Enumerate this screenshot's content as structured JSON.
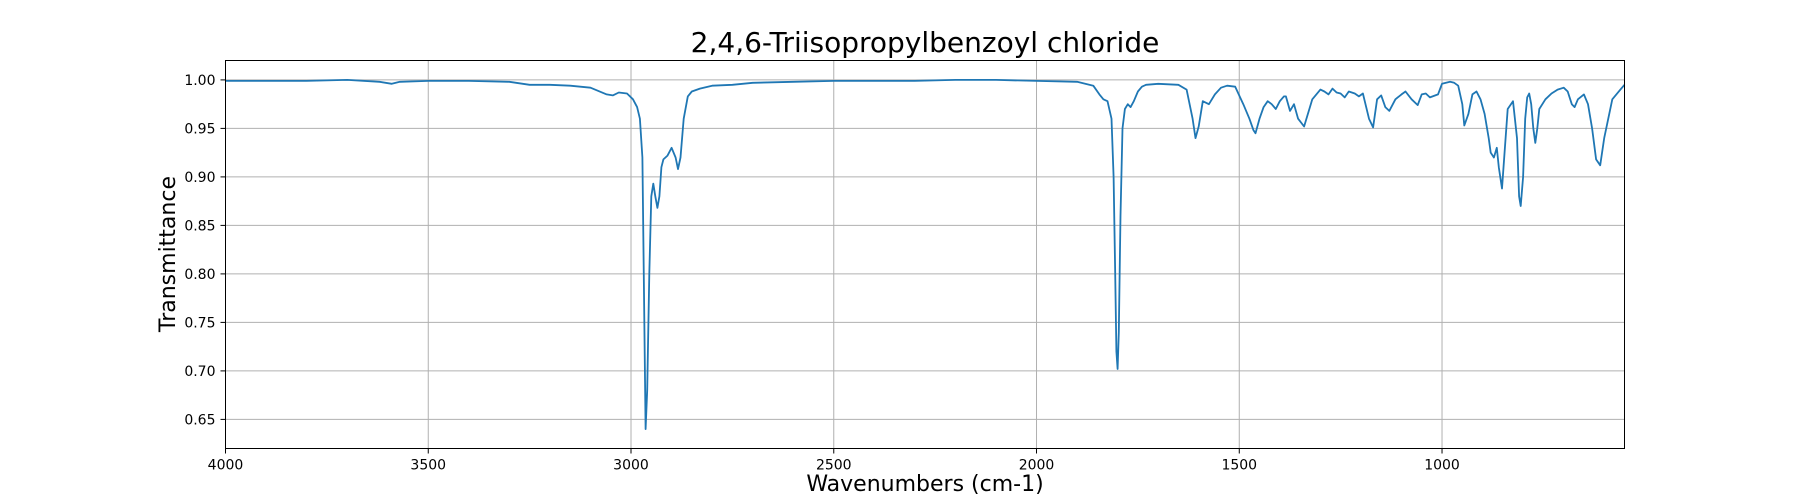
{
  "chart_data": {
    "type": "line",
    "title": "2,4,6-Triisopropylbenzoyl chloride",
    "xlabel": "Wavenumbers (cm-1)",
    "ylabel": "Transmittance",
    "xlim": [
      4000,
      550
    ],
    "ylim": [
      0.62,
      1.02
    ],
    "x_ticks": [
      4000,
      3500,
      3000,
      2500,
      2000,
      1500,
      1000
    ],
    "x_tick_labels": [
      "4000",
      "3500",
      "3000",
      "2500",
      "2000",
      "1500",
      "1000"
    ],
    "y_ticks": [
      0.65,
      0.7,
      0.75,
      0.8,
      0.85,
      0.9,
      0.95,
      1.0
    ],
    "y_tick_labels": [
      "0.65",
      "0.70",
      "0.75",
      "0.80",
      "0.85",
      "0.90",
      "0.95",
      "1.00"
    ],
    "grid": true,
    "color": "#1f77b4",
    "series": [
      {
        "x": [
          4000,
          3900,
          3800,
          3700,
          3620,
          3590,
          3570,
          3500,
          3400,
          3300,
          3250,
          3200,
          3150,
          3100,
          3060,
          3045,
          3030,
          3010,
          2995,
          2985,
          2978,
          2972,
          2968,
          2964,
          2960,
          2955,
          2950,
          2945,
          2940,
          2935,
          2930,
          2925,
          2920,
          2910,
          2900,
          2890,
          2884,
          2878,
          2870,
          2860,
          2850,
          2830,
          2800,
          2750,
          2700,
          2600,
          2500,
          2400,
          2300,
          2200,
          2100,
          2000,
          1900,
          1860,
          1845,
          1835,
          1825,
          1815,
          1810,
          1806,
          1803,
          1800,
          1797,
          1793,
          1788,
          1782,
          1775,
          1768,
          1760,
          1750,
          1740,
          1730,
          1700,
          1650,
          1630,
          1615,
          1608,
          1600,
          1590,
          1575,
          1560,
          1545,
          1530,
          1510,
          1490,
          1475,
          1465,
          1460,
          1450,
          1440,
          1430,
          1420,
          1410,
          1400,
          1390,
          1385,
          1375,
          1365,
          1355,
          1340,
          1320,
          1300,
          1290,
          1280,
          1270,
          1260,
          1250,
          1240,
          1230,
          1215,
          1205,
          1195,
          1180,
          1170,
          1160,
          1150,
          1140,
          1130,
          1115,
          1100,
          1090,
          1075,
          1060,
          1050,
          1040,
          1030,
          1010,
          1000,
          980,
          970,
          960,
          950,
          945,
          935,
          925,
          915,
          905,
          895,
          885,
          880,
          872,
          865,
          860,
          852,
          845,
          838,
          825,
          815,
          810,
          806,
          800,
          795,
          790,
          785,
          780,
          775,
          770,
          765,
          760,
          745,
          730,
          715,
          700,
          690,
          680,
          673,
          665,
          650,
          640,
          630,
          620,
          610,
          600,
          580,
          560,
          550
        ],
        "y": [
          0.999,
          0.999,
          0.999,
          1.0,
          0.998,
          0.996,
          0.998,
          0.999,
          0.999,
          0.998,
          0.995,
          0.995,
          0.994,
          0.992,
          0.985,
          0.984,
          0.987,
          0.986,
          0.98,
          0.972,
          0.96,
          0.92,
          0.78,
          0.64,
          0.68,
          0.8,
          0.88,
          0.893,
          0.88,
          0.868,
          0.88,
          0.91,
          0.918,
          0.922,
          0.93,
          0.92,
          0.908,
          0.92,
          0.96,
          0.983,
          0.988,
          0.991,
          0.994,
          0.995,
          0.997,
          0.998,
          0.999,
          0.999,
          0.999,
          1.0,
          1.0,
          0.999,
          0.998,
          0.994,
          0.985,
          0.98,
          0.978,
          0.96,
          0.9,
          0.8,
          0.72,
          0.702,
          0.74,
          0.86,
          0.95,
          0.97,
          0.975,
          0.972,
          0.978,
          0.988,
          0.993,
          0.995,
          0.996,
          0.995,
          0.99,
          0.96,
          0.94,
          0.952,
          0.978,
          0.975,
          0.985,
          0.992,
          0.994,
          0.993,
          0.975,
          0.96,
          0.948,
          0.945,
          0.96,
          0.972,
          0.978,
          0.975,
          0.97,
          0.978,
          0.983,
          0.983,
          0.968,
          0.975,
          0.96,
          0.952,
          0.98,
          0.99,
          0.988,
          0.985,
          0.991,
          0.987,
          0.986,
          0.982,
          0.988,
          0.986,
          0.983,
          0.986,
          0.96,
          0.951,
          0.98,
          0.984,
          0.972,
          0.968,
          0.98,
          0.985,
          0.988,
          0.98,
          0.974,
          0.985,
          0.986,
          0.982,
          0.985,
          0.996,
          0.998,
          0.997,
          0.994,
          0.975,
          0.953,
          0.965,
          0.985,
          0.988,
          0.98,
          0.965,
          0.94,
          0.925,
          0.92,
          0.93,
          0.91,
          0.888,
          0.93,
          0.97,
          0.978,
          0.94,
          0.88,
          0.87,
          0.9,
          0.96,
          0.982,
          0.986,
          0.975,
          0.95,
          0.935,
          0.95,
          0.97,
          0.98,
          0.986,
          0.99,
          0.992,
          0.988,
          0.975,
          0.972,
          0.98,
          0.985,
          0.975,
          0.95,
          0.918,
          0.912,
          0.94,
          0.98,
          0.99,
          0.995
        ]
      }
    ]
  }
}
